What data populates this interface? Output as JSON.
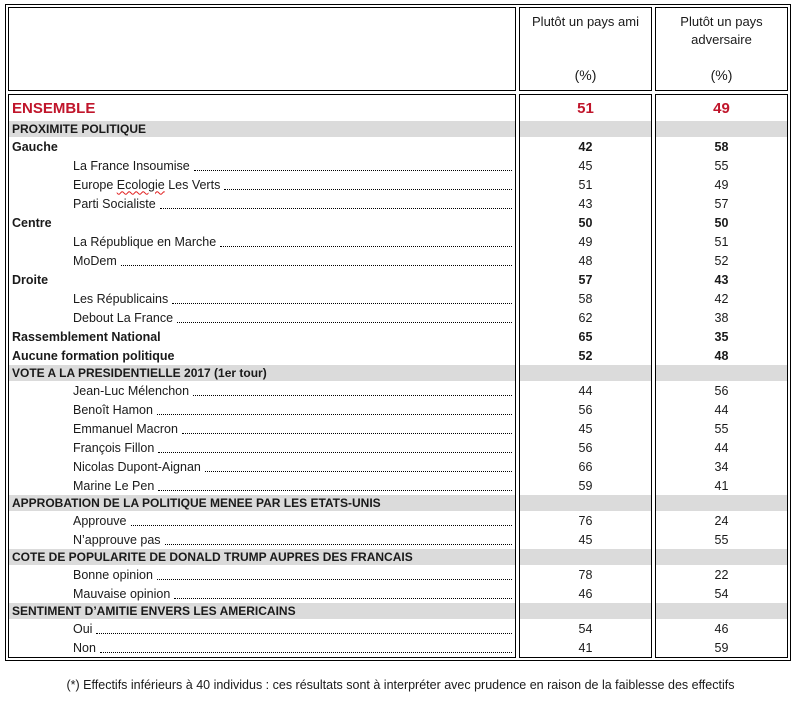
{
  "header": {
    "ami_title": "Plutôt un pays ami",
    "adversaire_title": "Plutôt un pays adversaire",
    "unit": "(%)"
  },
  "ensemble": {
    "label": "ENSEMBLE",
    "ami": "51",
    "adversaire": "49"
  },
  "sections": [
    {
      "title": "PROXIMITE POLITIQUE",
      "rows": [
        {
          "label": "Gauche",
          "ami": "42",
          "adversaire": "58",
          "bold": true,
          "indent": false,
          "dots": false
        },
        {
          "label": "La France Insoumise",
          "ami": "45",
          "adversaire": "55",
          "bold": false,
          "indent": true,
          "dots": true
        },
        {
          "label": "Europe Ecologie Les Verts",
          "wavy_word": "Ecologie",
          "ami": "51",
          "adversaire": "49",
          "bold": false,
          "indent": true,
          "dots": true
        },
        {
          "label": "Parti Socialiste",
          "ami": "43",
          "adversaire": "57",
          "bold": false,
          "indent": true,
          "dots": true
        },
        {
          "label": "Centre",
          "ami": "50",
          "adversaire": "50",
          "bold": true,
          "indent": false,
          "dots": false
        },
        {
          "label": "La République en Marche",
          "ami": "49",
          "adversaire": "51",
          "bold": false,
          "indent": true,
          "dots": true
        },
        {
          "label": "MoDem",
          "ami": "48",
          "adversaire": "52",
          "bold": false,
          "indent": true,
          "dots": true
        },
        {
          "label": "Droite",
          "ami": "57",
          "adversaire": "43",
          "bold": true,
          "indent": false,
          "dots": false
        },
        {
          "label": "Les Républicains",
          "ami": "58",
          "adversaire": "42",
          "bold": false,
          "indent": true,
          "dots": true
        },
        {
          "label": "Debout La France",
          "ami": "62",
          "adversaire": "38",
          "bold": false,
          "indent": true,
          "dots": true
        },
        {
          "label": "Rassemblement National",
          "ami": "65",
          "adversaire": "35",
          "bold": true,
          "indent": false,
          "dots": false
        },
        {
          "label": "Aucune formation politique",
          "ami": "52",
          "adversaire": "48",
          "bold": true,
          "indent": false,
          "dots": false
        }
      ]
    },
    {
      "title": "VOTE A LA PRESIDENTIELLE 2017 (1er tour)",
      "rows": [
        {
          "label": "Jean-Luc Mélenchon",
          "ami": "44",
          "adversaire": "56",
          "bold": false,
          "indent": true,
          "dots": true
        },
        {
          "label": "Benoît Hamon",
          "ami": "56",
          "adversaire": "44",
          "bold": false,
          "indent": true,
          "dots": true
        },
        {
          "label": "Emmanuel Macron",
          "ami": "45",
          "adversaire": "55",
          "bold": false,
          "indent": true,
          "dots": true
        },
        {
          "label": "François Fillon",
          "ami": "56",
          "adversaire": "44",
          "bold": false,
          "indent": true,
          "dots": true
        },
        {
          "label": "Nicolas Dupont-Aignan",
          "ami": "66",
          "adversaire": "34",
          "bold": false,
          "indent": true,
          "dots": true
        },
        {
          "label": "Marine Le Pen",
          "ami": "59",
          "adversaire": "41",
          "bold": false,
          "indent": true,
          "dots": true
        }
      ]
    },
    {
      "title": "APPROBATION DE LA POLITIQUE MENEE PAR LES ETATS-UNIS",
      "rows": [
        {
          "label": "Approuve",
          "ami": "76",
          "adversaire": "24",
          "bold": false,
          "indent": true,
          "dots": true
        },
        {
          "label": "N’approuve pas",
          "ami": "45",
          "adversaire": "55",
          "bold": false,
          "indent": true,
          "dots": true
        }
      ]
    },
    {
      "title": "COTE DE POPULARITE DE DONALD TRUMP AUPRES DES FRANCAIS",
      "rows": [
        {
          "label": "Bonne opinion",
          "ami": "78",
          "adversaire": "22",
          "bold": false,
          "indent": true,
          "dots": true
        },
        {
          "label": "Mauvaise opinion",
          "ami": "46",
          "adversaire": "54",
          "bold": false,
          "indent": true,
          "dots": true
        }
      ]
    },
    {
      "title": "SENTIMENT D’AMITIE ENVERS LES AMERICAINS",
      "rows": [
        {
          "label": "Oui",
          "ami": "54",
          "adversaire": "46",
          "bold": false,
          "indent": true,
          "dots": true
        },
        {
          "label": "Non",
          "ami": "41",
          "adversaire": "59",
          "bold": false,
          "indent": true,
          "dots": true
        }
      ]
    }
  ],
  "footnote": "(*) Effectifs inférieurs à 40 individus : ces résultats sont à interpréter avec prudence en raison de la faiblesse des effectifs",
  "colors": {
    "accent_red": "#c0152b",
    "band_gray": "#dbdbdb"
  }
}
